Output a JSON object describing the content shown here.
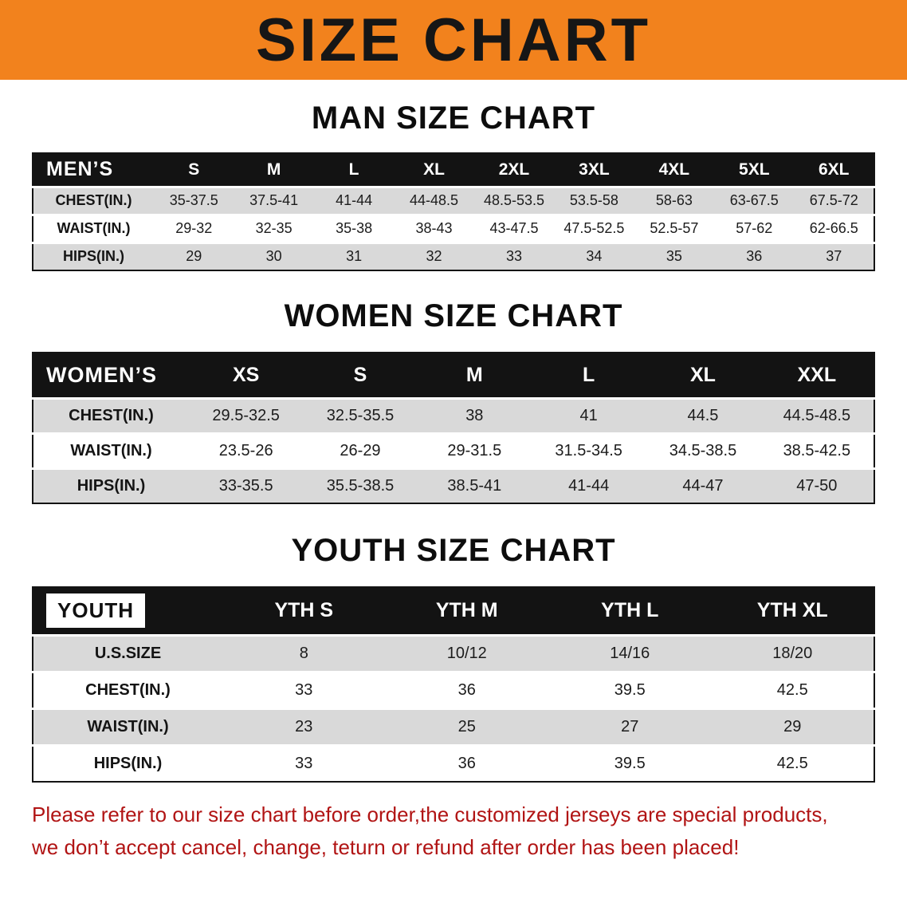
{
  "banner": {
    "title": "SIZE CHART"
  },
  "headings": {
    "men": "MAN SIZE CHART",
    "women": "WOMEN SIZE CHART",
    "youth": "YOUTH SIZE CHART"
  },
  "tables": {
    "men": {
      "header": [
        "MEN’S",
        "S",
        "M",
        "L",
        "XL",
        "2XL",
        "3XL",
        "4XL",
        "5XL",
        "6XL"
      ],
      "rows": [
        [
          "CHEST(IN.)",
          "35-37.5",
          "37.5-41",
          "41-44",
          "44-48.5",
          "48.5-53.5",
          "53.5-58",
          "58-63",
          "63-67.5",
          "67.5-72"
        ],
        [
          "WAIST(IN.)",
          "29-32",
          "32-35",
          "35-38",
          "38-43",
          "43-47.5",
          "47.5-52.5",
          "52.5-57",
          "57-62",
          "62-66.5"
        ],
        [
          "HIPS(IN.)",
          "29",
          "30",
          "31",
          "32",
          "33",
          "34",
          "35",
          "36",
          "37"
        ]
      ]
    },
    "women": {
      "header": [
        "WOMEN’S",
        "XS",
        "S",
        "M",
        "L",
        "XL",
        "XXL"
      ],
      "rows": [
        [
          "CHEST(IN.)",
          "29.5-32.5",
          "32.5-35.5",
          "38",
          "41",
          "44.5",
          "44.5-48.5"
        ],
        [
          "WAIST(IN.)",
          "23.5-26",
          "26-29",
          "29-31.5",
          "31.5-34.5",
          "34.5-38.5",
          "38.5-42.5"
        ],
        [
          "HIPS(IN.)",
          "33-35.5",
          "35.5-38.5",
          "38.5-41",
          "41-44",
          "44-47",
          "47-50"
        ]
      ]
    },
    "youth": {
      "header": [
        "YOUTH",
        "YTH S",
        "YTH M",
        "YTH L",
        "YTH XL"
      ],
      "rows": [
        [
          "U.S.SIZE",
          "8",
          "10/12",
          "14/16",
          "18/20"
        ],
        [
          "CHEST(IN.)",
          "33",
          "36",
          "39.5",
          "42.5"
        ],
        [
          "WAIST(IN.)",
          "23",
          "25",
          "27",
          "29"
        ],
        [
          "HIPS(IN.)",
          "33",
          "36",
          "39.5",
          "42.5"
        ]
      ]
    }
  },
  "disclaimer": {
    "line1": "Please refer to our size chart before order,the customized jerseys are special products,",
    "line2": "we don’t accept cancel, change, teturn or refund after order has been placed!"
  },
  "colors": {
    "banner-bg": "#f2821d",
    "banner-text": "#161616",
    "table-header-bg": "#131313",
    "table-header-text": "#ffffff",
    "stripe": "#d9d9d9",
    "disclaimer": "#b11414"
  }
}
